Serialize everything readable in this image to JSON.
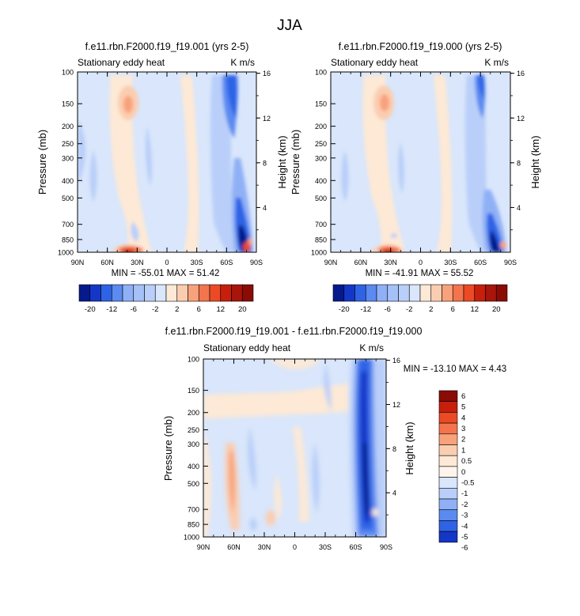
{
  "figure_title": "JJA",
  "colors": {
    "blue_ramp": [
      "#051a8c",
      "#1437c8",
      "#2f63e6",
      "#5b8af0",
      "#8fb0f6",
      "#b9cff9",
      "#d9e6fb"
    ],
    "red_ramp": [
      "#fde9d6",
      "#fbcdb0",
      "#f8a27c",
      "#f4744e",
      "#ec4a25",
      "#c71f0c",
      "#8a0c05"
    ]
  },
  "chart_data": [
    {
      "type": "heatmap",
      "title": "f.e11.rbn.F2000.f19_f19.001 (yrs 2-5)",
      "left_label": "Stationary eddy heat",
      "right_label": "K m/s",
      "ylabel": "Pressure (mb)",
      "ylabel_right": "Height (km)",
      "x_ticks": [
        "90N",
        "60N",
        "30N",
        "0",
        "30S",
        "60S",
        "90S"
      ],
      "y_ticks": [
        "100",
        "150",
        "200",
        "250",
        "300",
        "400",
        "500",
        "700",
        "850",
        "1000"
      ],
      "y_ticks_right": [
        "16",
        "12",
        "8",
        "4"
      ],
      "stats": "MIN = -55.01   MAX =  51.42",
      "colorbar_labels": [
        "-20",
        "-12",
        "-6",
        "-2",
        "2",
        "6",
        "12",
        "20"
      ]
    },
    {
      "type": "heatmap",
      "title": "f.e11.rbn.F2000.f19_f19.000 (yrs 2-5)",
      "left_label": "Stationary eddy heat",
      "right_label": "K m/s",
      "ylabel": "Pressure (mb)",
      "ylabel_right": "Height (km)",
      "x_ticks": [
        "90N",
        "60N",
        "30N",
        "0",
        "30S",
        "60S",
        "90S"
      ],
      "y_ticks": [
        "100",
        "150",
        "200",
        "250",
        "300",
        "400",
        "500",
        "700",
        "850",
        "1000"
      ],
      "y_ticks_right": [
        "16",
        "12",
        "8",
        "4"
      ],
      "stats": "MIN = -41.91   MAX =  55.52",
      "colorbar_labels": [
        "-20",
        "-12",
        "-6",
        "-2",
        "2",
        "6",
        "12",
        "20"
      ]
    },
    {
      "type": "heatmap",
      "title": "f.e11.rbn.F2000.f19_f19.001 - f.e11.rbn.F2000.f19_f19.000",
      "left_label": "Stationary eddy heat",
      "right_label": "K m/s",
      "ylabel": "Pressure (mb)",
      "ylabel_right": "Height (km)",
      "x_ticks": [
        "90N",
        "60N",
        "30N",
        "0",
        "30S",
        "60S",
        "90S"
      ],
      "y_ticks": [
        "100",
        "150",
        "200",
        "250",
        "300",
        "400",
        "500",
        "700",
        "850",
        "1000"
      ],
      "y_ticks_right": [
        "16",
        "12",
        "8",
        "4"
      ],
      "stats": "MIN = -13.10  MAX =   4.43",
      "colorbar_labels": [
        "6",
        "5",
        "4",
        "3",
        "2",
        "1",
        "0.5",
        "0",
        "-0.5",
        "-1",
        "-2",
        "-3",
        "-4",
        "-5",
        "-6"
      ]
    }
  ]
}
